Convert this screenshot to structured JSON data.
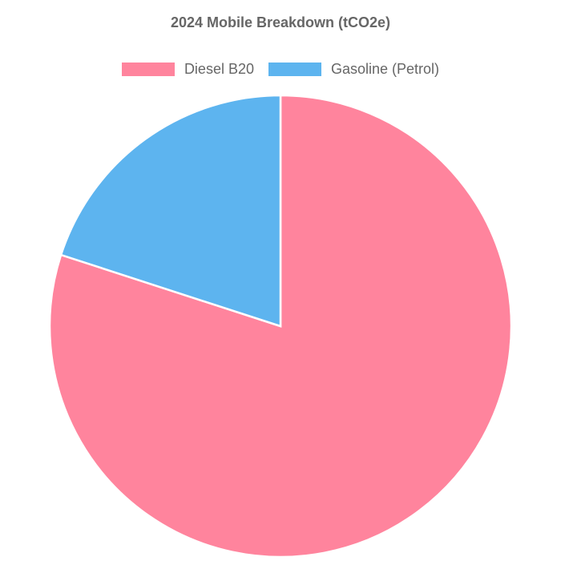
{
  "chart_data": {
    "type": "pie",
    "title": "2024 Mobile Breakdown (tCO2e)",
    "categories": [
      "Diesel B20",
      "Gasoline (Petrol)"
    ],
    "values": [
      80,
      20
    ],
    "colors": [
      "#FF849D",
      "#5DB4EF"
    ],
    "legend_position": "top"
  }
}
